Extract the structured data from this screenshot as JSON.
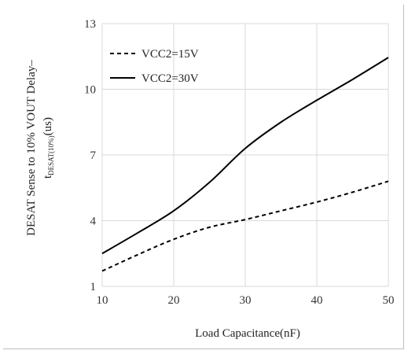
{
  "chart_data": {
    "type": "line",
    "xlabel": "Load Capacitance(nF)",
    "ylabel_line1": "DESAT Sense to 10% VOUT Delay–",
    "ylabel_line2_main": "t",
    "ylabel_line2_sub": "DESAT(10%)",
    "ylabel_line2_unit": "(us)",
    "xlim": [
      10,
      50
    ],
    "ylim": [
      1,
      13
    ],
    "x_ticks": [
      "10",
      "20",
      "30",
      "40",
      "50"
    ],
    "y_ticks": [
      "1",
      "4",
      "7",
      "10",
      "13"
    ],
    "grid": true,
    "legend_position": "top-left",
    "series": [
      {
        "name": "VCC2=15V",
        "style": "dashed",
        "color": "#000000",
        "x": [
          10,
          15,
          20,
          25,
          30,
          35,
          40,
          45,
          50
        ],
        "y": [
          1.7,
          2.45,
          3.15,
          3.7,
          4.05,
          4.45,
          4.85,
          5.3,
          5.8
        ]
      },
      {
        "name": "VCC2=30V",
        "style": "solid",
        "color": "#000000",
        "x": [
          10,
          15,
          20,
          25,
          30,
          35,
          40,
          45,
          50
        ],
        "y": [
          2.5,
          3.45,
          4.45,
          5.75,
          7.3,
          8.5,
          9.5,
          10.45,
          11.45
        ]
      }
    ]
  }
}
